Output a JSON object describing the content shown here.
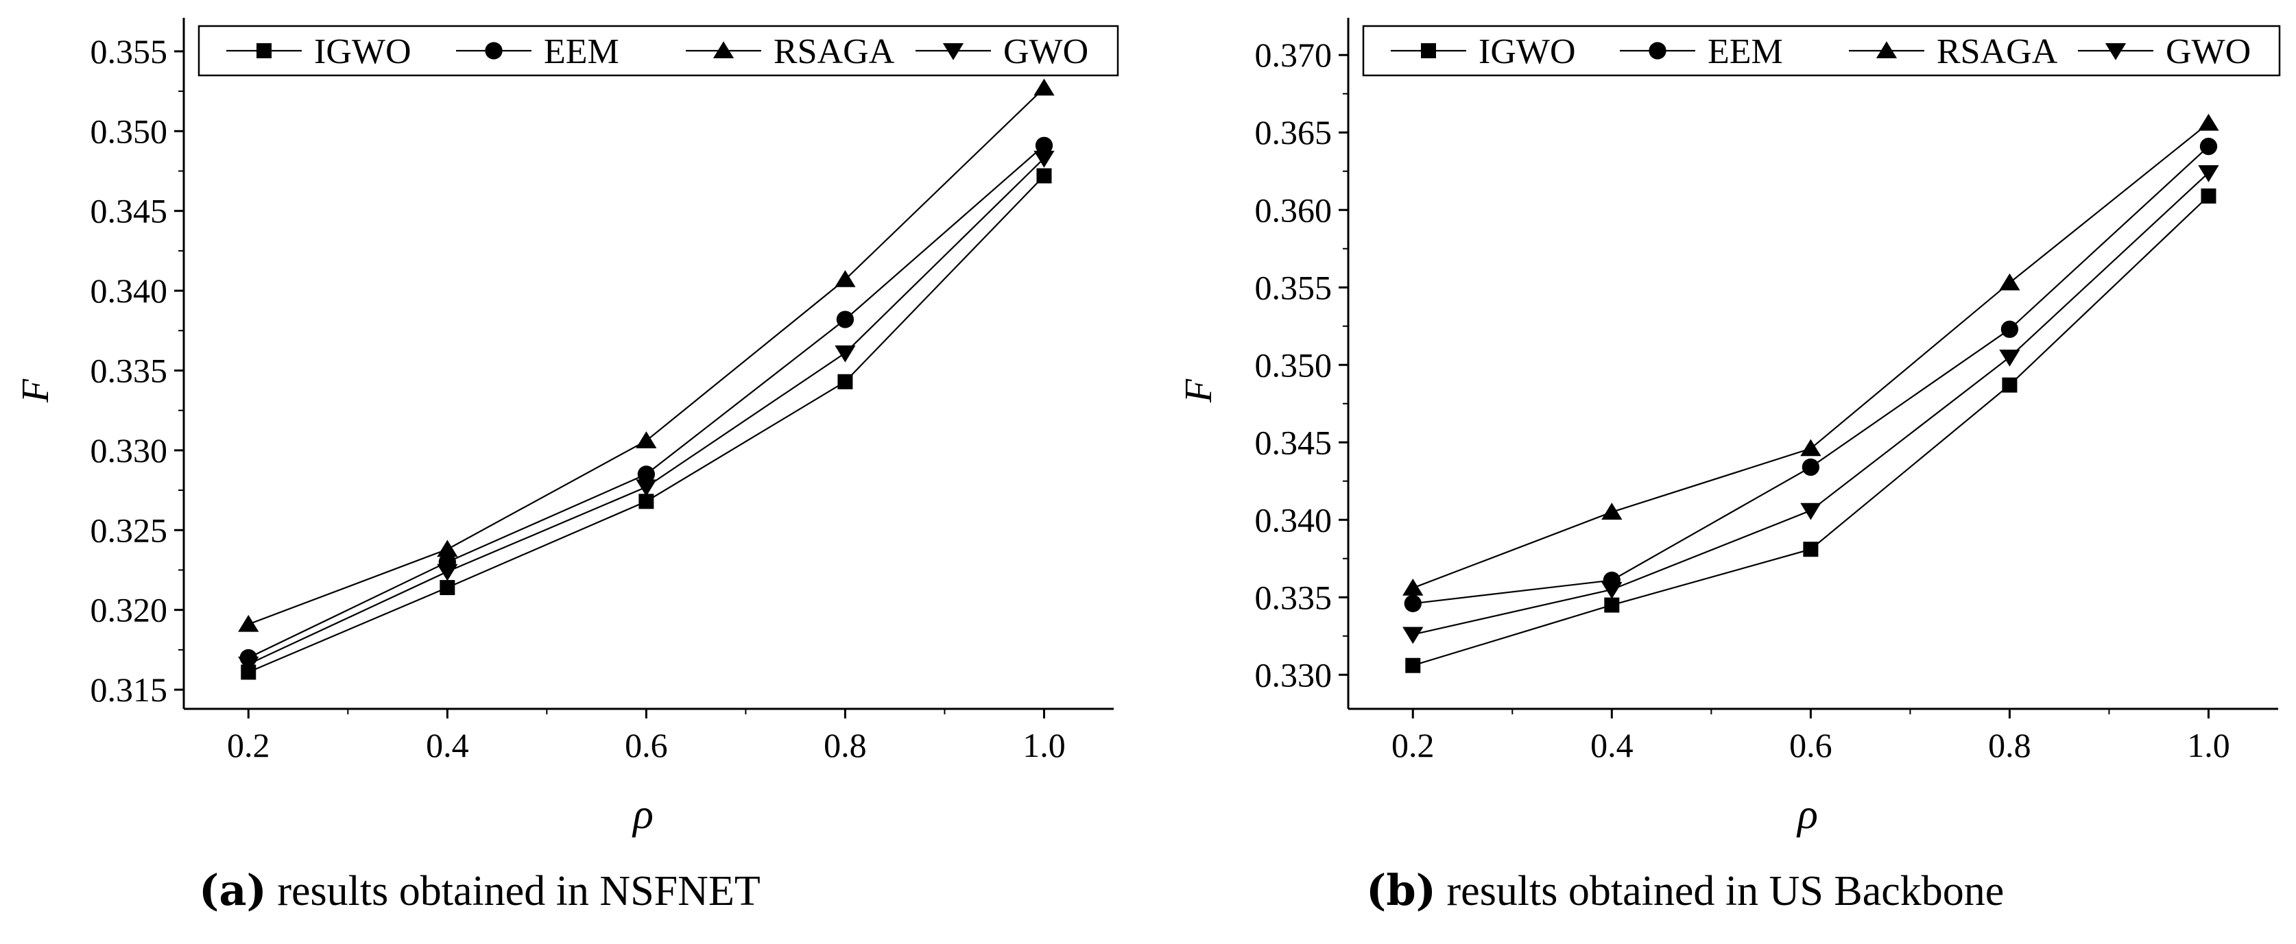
{
  "figure": {
    "caption_a": {
      "letter": "(a)",
      "text": " results obtained in NSFNET"
    },
    "caption_b": {
      "letter": "(b)",
      "text": " results obtained in US Backbone"
    }
  },
  "chart_data": [
    {
      "type": "line",
      "panel": "a",
      "title": "",
      "xlabel": "ρ",
      "ylabel": "F",
      "x": [
        0.2,
        0.4,
        0.6,
        0.8,
        1.0
      ],
      "x_tick_labels": [
        "0.2",
        "0.4",
        "0.6",
        "0.8",
        "1.0"
      ],
      "xlim": [
        0.135,
        1.07
      ],
      "ylim": [
        0.3138,
        0.3571
      ],
      "y_ticks": [
        0.315,
        0.32,
        0.325,
        0.33,
        0.335,
        0.34,
        0.345,
        0.35,
        0.355
      ],
      "y_tick_labels": [
        "0.315",
        "0.320",
        "0.325",
        "0.330",
        "0.335",
        "0.340",
        "0.345",
        "0.350",
        "0.355"
      ],
      "grid": false,
      "legend_position": "top",
      "series": [
        {
          "name": "IGWO",
          "marker": "square",
          "values": [
            0.3161,
            0.3214,
            0.3268,
            0.3343,
            0.3472
          ]
        },
        {
          "name": "EEM",
          "marker": "circle",
          "values": [
            0.317,
            0.323,
            0.3285,
            0.3382,
            0.3491
          ]
        },
        {
          "name": "RSAGA",
          "marker": "triangle-up",
          "values": [
            0.3191,
            0.3238,
            0.3306,
            0.3407,
            0.3527
          ]
        },
        {
          "name": "GWO",
          "marker": "triangle-down",
          "values": [
            0.3166,
            0.3224,
            0.3277,
            0.3361,
            0.3483
          ]
        }
      ]
    },
    {
      "type": "line",
      "panel": "b",
      "title": "",
      "xlabel": "ρ",
      "ylabel": "F",
      "x": [
        0.2,
        0.4,
        0.6,
        0.8,
        1.0
      ],
      "x_tick_labels": [
        "0.2",
        "0.4",
        "0.6",
        "0.8",
        "1.0"
      ],
      "xlim": [
        0.135,
        1.07
      ],
      "ylim": [
        0.3278,
        0.3724
      ],
      "y_ticks": [
        0.33,
        0.335,
        0.34,
        0.345,
        0.35,
        0.355,
        0.36,
        0.365,
        0.37
      ],
      "y_tick_labels": [
        "0.330",
        "0.335",
        "0.340",
        "0.345",
        "0.350",
        "0.355",
        "0.360",
        "0.365",
        "0.370"
      ],
      "grid": false,
      "legend_position": "top",
      "series": [
        {
          "name": "IGWO",
          "marker": "square",
          "values": [
            0.3306,
            0.3345,
            0.3381,
            0.3487,
            0.3609
          ]
        },
        {
          "name": "EEM",
          "marker": "circle",
          "values": [
            0.3346,
            0.3361,
            0.3434,
            0.3523,
            0.3641
          ]
        },
        {
          "name": "RSAGA",
          "marker": "triangle-up",
          "values": [
            0.3356,
            0.3405,
            0.3446,
            0.3553,
            0.3656
          ]
        },
        {
          "name": "GWO",
          "marker": "triangle-down",
          "values": [
            0.3326,
            0.3355,
            0.3406,
            0.3505,
            0.3624
          ]
        }
      ]
    }
  ]
}
